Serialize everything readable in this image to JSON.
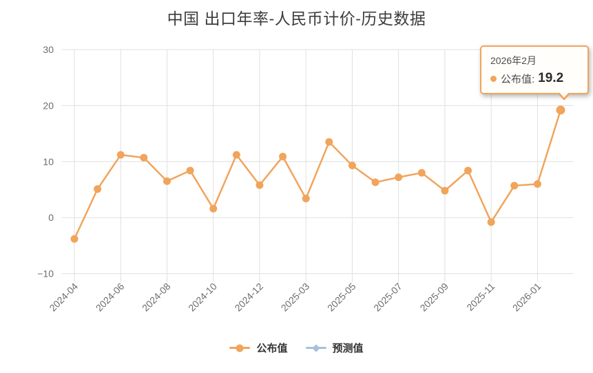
{
  "title": "中国 出口年率-人民币计价-历史数据",
  "colors": {
    "series": "#F1A45B",
    "forecast": "#A7C0DB",
    "grid": "#E0E0E0",
    "axis_label": "#6D6D6D",
    "title_text": "#3C3C3C",
    "legend_text": "#333333",
    "tooltip_bg": "#FFFEFA",
    "tooltip_border": "#F1A45B"
  },
  "tooltip": {
    "date": "2026年2月",
    "label": "公布值:",
    "value": "19.2"
  },
  "legend": [
    {
      "label": "公布值",
      "marker": "circle-on-line",
      "color": "#F1A45B"
    },
    {
      "label": "预测值",
      "marker": "diamond-on-line",
      "color": "#A7C0DB"
    }
  ],
  "chart_data": {
    "type": "line",
    "title": "中国 出口年率-人民币计价-历史数据",
    "categories": [
      "2024-04",
      "2024-05",
      "2024-06",
      "2024-07",
      "2024-08",
      "2024-09",
      "2024-10",
      "2024-11",
      "2024-12",
      "2025-01",
      "2025-03",
      "2025-04",
      "2025-05",
      "2025-06",
      "2025-07",
      "2025-08",
      "2025-09",
      "2025-10",
      "2025-11",
      "2025-12",
      "2026-01",
      "2026-02"
    ],
    "series": [
      {
        "name": "公布值",
        "color": "#F1A45B",
        "marker": "circle",
        "values": [
          -3.8,
          5.1,
          11.2,
          10.7,
          6.5,
          8.4,
          1.6,
          11.2,
          5.8,
          10.9,
          3.4,
          13.5,
          9.3,
          6.3,
          7.2,
          8.0,
          4.8,
          8.4,
          -0.8,
          5.7,
          6.0,
          19.2
        ]
      },
      {
        "name": "预测值",
        "color": "#A7C0DB",
        "marker": "diamond",
        "values": []
      }
    ],
    "x_tick_labels": [
      "2024-04",
      "2024-06",
      "2024-08",
      "2024-10",
      "2024-12",
      "2025-03",
      "2025-05",
      "2025-07",
      "2025-09",
      "2025-11",
      "2026-01"
    ],
    "x_tick_every": 2,
    "y_ticks": [
      30,
      20,
      10,
      0,
      -10
    ],
    "ylim": [
      -10,
      30
    ],
    "grid": true,
    "legend_position": "bottom",
    "highlighted_point": {
      "category": "2026-02",
      "series": "公布值",
      "value": 19.2
    }
  }
}
